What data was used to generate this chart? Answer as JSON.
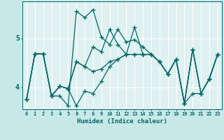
{
  "title": "",
  "xlabel": "Humidex (Indice chaleur)",
  "bg_color": "#c8e8e8",
  "plot_bg_color": "#dff0f0",
  "line_color": "#006868",
  "grid_color": "#ffffff",
  "tick_color": "#006868",
  "xlim": [
    -0.5,
    23.5
  ],
  "ylim": [
    3.55,
    5.75
  ],
  "yticks": [
    4,
    5
  ],
  "xticks": [
    0,
    1,
    2,
    3,
    4,
    5,
    6,
    7,
    8,
    9,
    10,
    11,
    12,
    13,
    14,
    15,
    16,
    17,
    18,
    19,
    20,
    21,
    22,
    23
  ],
  "lines": [
    [
      3.75,
      4.68,
      4.68,
      3.82,
      3.82,
      3.62,
      5.55,
      5.42,
      5.58,
      5.02,
      4.87,
      5.18,
      4.92,
      4.97,
      4.82,
      4.67,
      4.52,
      4.27,
      4.57,
      3.67,
      3.87,
      3.87,
      4.17,
      4.67
    ],
    [
      3.75,
      4.68,
      4.68,
      3.82,
      4.02,
      3.97,
      4.52,
      4.42,
      4.82,
      4.72,
      5.18,
      4.87,
      4.67,
      5.22,
      4.67,
      4.67,
      4.52,
      4.27,
      4.57,
      3.67,
      4.77,
      3.87,
      4.17,
      4.67
    ],
    [
      3.75,
      4.68,
      4.68,
      3.82,
      4.02,
      3.97,
      4.52,
      4.42,
      4.32,
      4.37,
      4.52,
      4.57,
      4.67,
      4.67,
      4.67,
      4.67,
      4.52,
      4.27,
      4.57,
      3.67,
      4.77,
      3.87,
      4.17,
      4.67
    ],
    [
      3.75,
      4.68,
      4.68,
      3.82,
      4.02,
      3.97,
      3.62,
      3.92,
      3.87,
      4.12,
      4.42,
      4.57,
      4.67,
      4.67,
      4.67,
      4.67,
      4.52,
      4.27,
      4.57,
      3.67,
      4.77,
      3.87,
      4.17,
      4.67
    ]
  ],
  "marker": "+",
  "markersize": 4,
  "linewidth": 0.9
}
